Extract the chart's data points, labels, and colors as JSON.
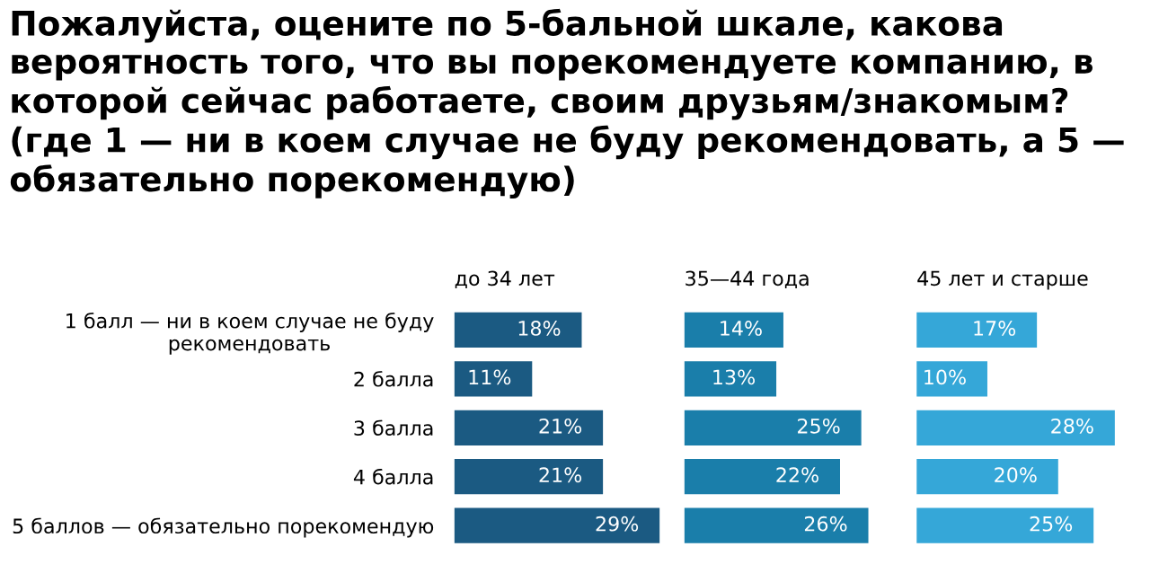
{
  "chart_data": [
    {
      "type": "bar",
      "orientation": "horizontal",
      "title": "Пожалуйста, оцените по 5-бальной шкале, какова вероятность того, что вы порекомендуете компанию, в которой сейчас работаете, своим друзьям/знакомым? (где 1 — ни в коем случае не буду рекомендовать, а 5 — обязательно порекомендую)",
      "subtitle": "до 34 лет",
      "categories": [
        "1 балл — ни в коем случае не буду\nрекомендовать",
        "2 балла",
        "3 балла",
        "4 балла",
        "5 баллов — обязательно порекомендую"
      ],
      "values": [
        18,
        11,
        21,
        21,
        29
      ],
      "value_labels": [
        "18%",
        "11%",
        "21%",
        "21%",
        "29%"
      ],
      "color": "#1b5a82",
      "tick_labels": "y"
    },
    {
      "type": "bar",
      "orientation": "horizontal",
      "subtitle": "35—44 года",
      "values": [
        14,
        13,
        25,
        22,
        26
      ],
      "value_labels": [
        "14%",
        "13%",
        "25%",
        "22%",
        "26%"
      ],
      "color": "#1a7eaa",
      "tick_labels": false
    },
    {
      "type": "bar",
      "orientation": "horizontal",
      "subtitle": "45 лет и старше",
      "values": [
        17,
        10,
        28,
        20,
        25
      ],
      "value_labels": [
        "17%",
        "10%",
        "28%",
        "20%",
        "25%"
      ],
      "color": "#35a7d8",
      "tick_labels": false
    }
  ]
}
